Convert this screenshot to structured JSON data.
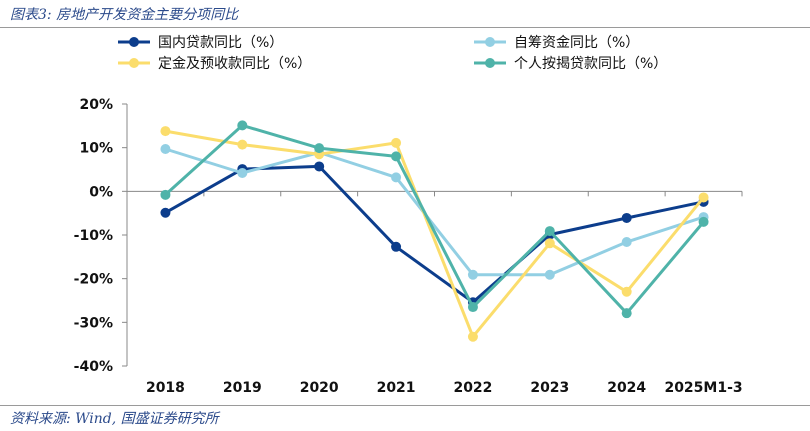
{
  "header": {
    "title": "图表3:  房地产开发资金主要分项同比"
  },
  "footer": {
    "source": "资料来源:  Wind,  国盛证券研究所"
  },
  "chart_data": {
    "type": "line",
    "title": "",
    "xlabel": "",
    "ylabel": "",
    "categories": [
      "2018",
      "2019",
      "2020",
      "2021",
      "2022",
      "2023",
      "2024",
      "2025M1-3"
    ],
    "ylim": [
      -40,
      20
    ],
    "yticks": [
      20,
      10,
      0,
      -10,
      -20,
      -30,
      -40
    ],
    "ytick_labels": [
      "20%",
      "10%",
      "0%",
      "-10%",
      "-20%",
      "-30%",
      "-40%"
    ],
    "grid": false,
    "legend_position": "top",
    "series": [
      {
        "name": "国内贷款同比（%）",
        "color": "#0c3d8c",
        "values": [
          -4.9,
          5.1,
          5.7,
          -12.7,
          -25.4,
          -9.9,
          -6.1,
          -2.4
        ]
      },
      {
        "name": "自筹资金同比（%）",
        "color": "#92cfe3",
        "values": [
          9.7,
          4.2,
          8.9,
          3.2,
          -19.1,
          -19.1,
          -11.6,
          -5.9
        ]
      },
      {
        "name": "定金及预收款同比（%）",
        "color": "#fbdd6c",
        "values": [
          13.8,
          10.7,
          8.5,
          11.1,
          -33.3,
          -11.9,
          -23.0,
          -1.4
        ]
      },
      {
        "name": "个人按揭贷款同比（%）",
        "color": "#4fb3a9",
        "values": [
          -0.8,
          15.1,
          9.9,
          8.0,
          -26.5,
          -9.1,
          -27.9,
          -7.0
        ]
      }
    ]
  }
}
